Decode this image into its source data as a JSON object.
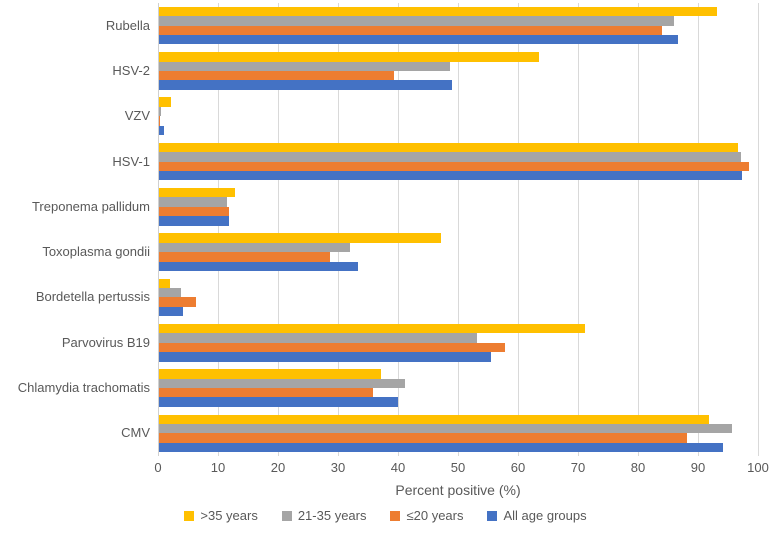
{
  "chart_data": {
    "type": "bar",
    "orientation": "horizontal",
    "xlabel": "Percent positive (%)",
    "xlim": [
      0,
      100
    ],
    "xticks": [
      0,
      10,
      20,
      30,
      40,
      50,
      60,
      70,
      80,
      90,
      100
    ],
    "grid": true,
    "legend_position": "bottom",
    "categories": [
      "Rubella",
      "HSV-2",
      "VZV",
      "HSV-1",
      "Treponema pallidum",
      "Toxoplasma gondii",
      "Bordetella pertussis",
      "Parvovirus B19",
      "Chlamydia trachomatis",
      "CMV"
    ],
    "series": [
      {
        "name": ">35 years",
        "color": "#FFC000",
        "values": [
          93,
          63.3,
          2.0,
          96.5,
          12.7,
          47.0,
          1.8,
          71.0,
          37.0,
          91.7
        ]
      },
      {
        "name": "21-35 years",
        "color": "#A5A5A5",
        "values": [
          85.8,
          48.5,
          0.4,
          97.0,
          11.3,
          31.8,
          3.7,
          53.0,
          41.0,
          95.5
        ]
      },
      {
        "name": "≤20 years",
        "color": "#ED7D31",
        "values": [
          83.8,
          39.2,
          0.1,
          98.3,
          11.6,
          28.5,
          6.2,
          57.7,
          35.7,
          88.0
        ]
      },
      {
        "name": "All age groups",
        "color": "#4472C4",
        "values": [
          86.5,
          48.9,
          0.8,
          97.2,
          11.6,
          33.1,
          4.0,
          55.4,
          39.9,
          94.0
        ]
      }
    ]
  }
}
